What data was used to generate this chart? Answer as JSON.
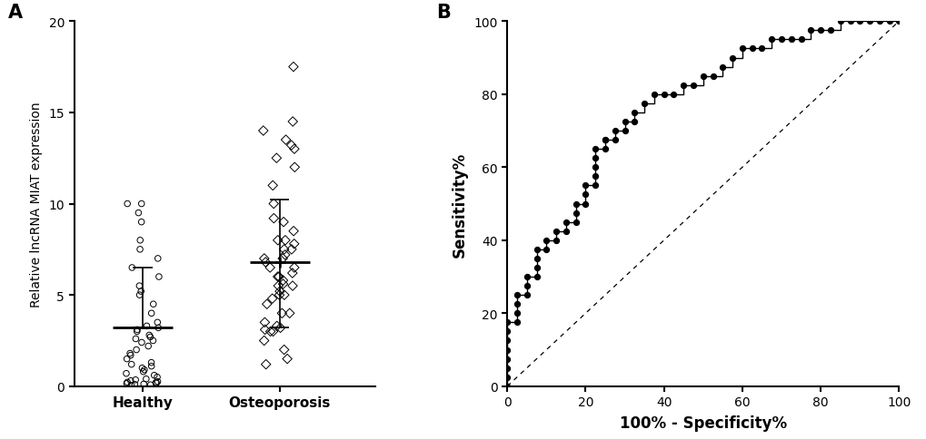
{
  "panel_A_label": "A",
  "panel_B_label": "B",
  "ylabel_A": "Relative lncRNA MIAT expression",
  "xlabel_A_categories": [
    "Healthy",
    "Osteoporosis"
  ],
  "ylim_A": [
    0,
    20
  ],
  "yticks_A": [
    0,
    5,
    10,
    15,
    20
  ],
  "healthy_mean": 3.2,
  "healthy_sd_upper": 6.5,
  "healthy_sd_lower": 3.2,
  "osteo_mean": 6.8,
  "osteo_sd_upper": 10.2,
  "osteo_sd_lower": 3.2,
  "healthy_data": [
    0.05,
    0.08,
    0.1,
    0.12,
    0.15,
    0.18,
    0.2,
    0.22,
    0.25,
    0.3,
    0.35,
    0.4,
    0.5,
    0.6,
    0.7,
    0.8,
    0.9,
    1.0,
    1.1,
    1.2,
    1.3,
    1.5,
    1.7,
    1.8,
    2.0,
    2.2,
    2.4,
    2.5,
    2.6,
    2.7,
    2.8,
    3.0,
    3.1,
    3.2,
    3.3,
    3.5,
    4.0,
    4.5,
    5.0,
    5.2,
    5.5,
    6.0,
    6.5,
    7.0,
    7.5,
    8.0,
    9.0,
    9.5,
    10.0,
    10.0
  ],
  "osteo_data": [
    1.2,
    1.5,
    2.0,
    2.5,
    3.0,
    3.0,
    3.1,
    3.2,
    3.3,
    3.5,
    4.0,
    4.0,
    4.5,
    4.8,
    5.0,
    5.0,
    5.2,
    5.5,
    5.5,
    5.6,
    5.8,
    6.0,
    6.0,
    6.2,
    6.5,
    6.5,
    6.8,
    7.0,
    7.0,
    7.2,
    7.5,
    7.5,
    7.8,
    8.0,
    8.0,
    8.5,
    9.0,
    9.2,
    10.0,
    11.0,
    12.0,
    12.5,
    13.0,
    13.2,
    13.5,
    14.0,
    14.5,
    17.5
  ],
  "roc_fpr": [
    0,
    0,
    0,
    0,
    0,
    0,
    0,
    0,
    2.5,
    2.5,
    2.5,
    2.5,
    5.0,
    5.0,
    5.0,
    7.5,
    7.5,
    7.5,
    7.5,
    10.0,
    10.0,
    12.5,
    12.5,
    15.0,
    15.0,
    17.5,
    17.5,
    17.5,
    20.0,
    20.0,
    20.0,
    22.5,
    22.5,
    22.5,
    22.5,
    22.5,
    25.0,
    25.0,
    25.0,
    27.5,
    27.5,
    30.0,
    30.0,
    32.5,
    32.5,
    35.0,
    37.5,
    40.0,
    42.5,
    45.0,
    47.5,
    50.0,
    52.5,
    55.0,
    57.5,
    60.0,
    62.5,
    65.0,
    67.5,
    70.0,
    72.5,
    75.0,
    77.5,
    80.0,
    82.5,
    85.0,
    87.5,
    90.0,
    92.5,
    95.0,
    97.5,
    100.0
  ],
  "roc_tpr": [
    0,
    2.5,
    5.0,
    7.5,
    10.0,
    12.5,
    15.0,
    17.5,
    17.5,
    20.0,
    22.5,
    25.0,
    25.0,
    27.5,
    30.0,
    30.0,
    32.5,
    35.0,
    37.5,
    37.5,
    40.0,
    40.0,
    42.5,
    42.5,
    45.0,
    45.0,
    47.5,
    50.0,
    50.0,
    52.5,
    55.0,
    55.0,
    57.5,
    60.0,
    62.5,
    65.0,
    65.0,
    67.5,
    67.5,
    67.5,
    70.0,
    70.0,
    72.5,
    72.5,
    75.0,
    77.5,
    80.0,
    80.0,
    80.0,
    82.5,
    82.5,
    85.0,
    85.0,
    87.5,
    90.0,
    92.5,
    92.5,
    92.5,
    95.0,
    95.0,
    95.0,
    95.0,
    97.5,
    97.5,
    97.5,
    100.0,
    100.0,
    100.0,
    100.0,
    100.0,
    100.0,
    100.0
  ],
  "xlabel_B": "100% - Specificity%",
  "ylabel_B": "Sensitivity%",
  "xlim_B": [
    0,
    100
  ],
  "ylim_B": [
    0,
    100
  ],
  "xticks_B": [
    0,
    20,
    40,
    60,
    80,
    100
  ],
  "yticks_B": [
    0,
    20,
    40,
    60,
    80,
    100
  ],
  "background_color": "#ffffff",
  "dot_color": "#000000",
  "line_color": "#000000"
}
